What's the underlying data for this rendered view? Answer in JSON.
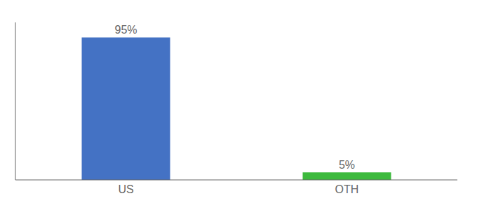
{
  "chart_data": {
    "type": "bar",
    "categories": [
      "US",
      "OTH"
    ],
    "values": [
      95,
      5
    ],
    "value_labels": [
      "95%",
      "5%"
    ],
    "colors": [
      "#4472c4",
      "#3dba3d"
    ],
    "ylim": [
      0,
      105
    ],
    "data_labels": true,
    "tick_labels": "x",
    "grid": false
  }
}
